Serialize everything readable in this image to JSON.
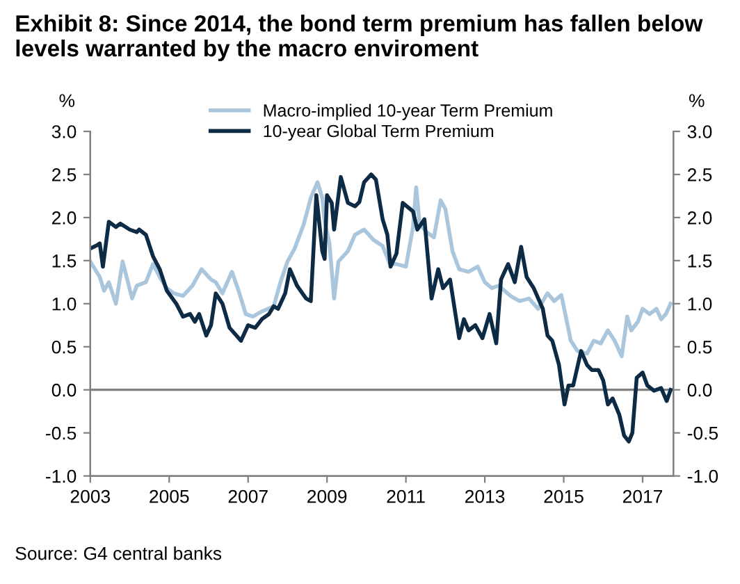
{
  "chart_data": {
    "type": "line",
    "title": "Exhibit 8: Since 2014, the bond term premium has fallen below levels warranted by the macro enviroment",
    "ylabel": "%",
    "y2label": "%",
    "annotations": [
      "Source: G4 central banks"
    ],
    "xlim": [
      2003,
      2017.78
    ],
    "xticks": [
      2003,
      2005,
      2007,
      2009,
      2011,
      2013,
      2015,
      2017
    ],
    "ylim": [
      -1,
      3
    ],
    "yticks": [
      {
        "value": -1,
        "label": "-1.0"
      },
      {
        "value": -0.5,
        "label": "-0.5"
      },
      {
        "value": 0,
        "label": "0.0"
      },
      {
        "value": 0.5,
        "label": "0.5"
      },
      {
        "value": 1,
        "label": "1.0"
      },
      {
        "value": 1.5,
        "label": "1.5"
      },
      {
        "value": 2,
        "label": "2.0"
      },
      {
        "value": 2.5,
        "label": "2.5"
      },
      {
        "value": 3,
        "label": "3.0"
      }
    ],
    "y2lim": [
      -1,
      3
    ],
    "y2ticks": [
      {
        "value": -1,
        "label": "-1.0"
      },
      {
        "value": -0.5,
        "label": "-0.5"
      },
      {
        "value": 0,
        "label": "0.0"
      },
      {
        "value": 0.5,
        "label": "0.5"
      },
      {
        "value": 1,
        "label": "1.0"
      },
      {
        "value": 1.5,
        "label": "1.5"
      },
      {
        "value": 2,
        "label": "2.0"
      },
      {
        "value": 2.5,
        "label": "2.5"
      },
      {
        "value": 3,
        "label": "3.0"
      }
    ],
    "ref_lines": [
      {
        "axis": "y",
        "value": 0,
        "color": "#808080"
      }
    ],
    "legend": "top",
    "grid": false,
    "series": [
      {
        "name": "Macro-implied 10-year Term Premium",
        "color": "#a9c6dd",
        "x": [
          2003,
          2003.24,
          2003.35,
          2003.47,
          2003.65,
          2003.82,
          2004.06,
          2004.18,
          2004.41,
          2004.59,
          2004.76,
          2004.94,
          2005.12,
          2005.35,
          2005.59,
          2005.82,
          2006.06,
          2006.18,
          2006.35,
          2006.59,
          2006.76,
          2006.94,
          2007.12,
          2007.35,
          2007.65,
          2007.82,
          2008,
          2008.18,
          2008.41,
          2008.59,
          2008.76,
          2008.88,
          2008.94,
          2009.06,
          2009.18,
          2009.29,
          2009.53,
          2009.71,
          2009.94,
          2010.18,
          2010.41,
          2010.59,
          2010.76,
          2011,
          2011.18,
          2011.26,
          2011.35,
          2011.53,
          2011.71,
          2011.88,
          2012,
          2012.18,
          2012.35,
          2012.59,
          2012.82,
          2013,
          2013.18,
          2013.35,
          2013.65,
          2013.88,
          2014.12,
          2014.35,
          2014.47,
          2014.59,
          2014.76,
          2014.94,
          2015.18,
          2015.35,
          2015.59,
          2015.76,
          2015.94,
          2016.12,
          2016.29,
          2016.47,
          2016.61,
          2016.71,
          2016.88,
          2017,
          2017.18,
          2017.35,
          2017.47,
          2017.59,
          2017.71
        ],
        "values": [
          1.49,
          1.31,
          1.15,
          1.25,
          1.0,
          1.49,
          1.06,
          1.21,
          1.25,
          1.46,
          1.31,
          1.18,
          1.12,
          1.09,
          1.21,
          1.4,
          1.28,
          1.25,
          1.12,
          1.37,
          1.15,
          0.88,
          0.85,
          0.91,
          0.97,
          1.25,
          1.49,
          1.64,
          1.92,
          2.23,
          2.41,
          2.23,
          1.95,
          1.71,
          1.06,
          1.49,
          1.61,
          1.8,
          1.86,
          1.74,
          1.67,
          1.46,
          1.46,
          1.43,
          1.89,
          2.35,
          1.92,
          1.83,
          1.77,
          2.2,
          2.1,
          1.61,
          1.4,
          1.37,
          1.43,
          1.25,
          1.18,
          1.21,
          1.09,
          1.03,
          1.06,
          0.94,
          1.03,
          1.12,
          1.03,
          1.1,
          0.57,
          0.45,
          0.42,
          0.57,
          0.54,
          0.69,
          0.57,
          0.39,
          0.85,
          0.69,
          0.79,
          0.94,
          0.88,
          0.94,
          0.82,
          0.88,
          1.0
        ]
      },
      {
        "name": "10-year Global Term Premium",
        "color": "#0d2b45",
        "x": [
          2003,
          2003.18,
          2003.24,
          2003.32,
          2003.47,
          2003.65,
          2003.76,
          2004,
          2004.18,
          2004.24,
          2004.41,
          2004.59,
          2004.76,
          2004.94,
          2005.18,
          2005.35,
          2005.53,
          2005.65,
          2005.76,
          2005.94,
          2006.06,
          2006.18,
          2006.35,
          2006.53,
          2006.82,
          2007,
          2007.18,
          2007.35,
          2007.53,
          2007.65,
          2007.76,
          2007.94,
          2008.06,
          2008.24,
          2008.47,
          2008.59,
          2008.73,
          2008.88,
          2008.94,
          2009,
          2009.12,
          2009.18,
          2009.35,
          2009.53,
          2009.71,
          2009.82,
          2009.94,
          2010.12,
          2010.24,
          2010.41,
          2010.53,
          2010.61,
          2010.76,
          2010.92,
          2011.18,
          2011.29,
          2011.47,
          2011.65,
          2011.82,
          2011.94,
          2012.12,
          2012.35,
          2012.47,
          2012.59,
          2012.76,
          2012.94,
          2013.12,
          2013.29,
          2013.41,
          2013.59,
          2013.76,
          2013.92,
          2014.06,
          2014.24,
          2014.47,
          2014.59,
          2014.71,
          2014.88,
          2015.02,
          2015.12,
          2015.24,
          2015.44,
          2015.59,
          2015.71,
          2015.88,
          2016,
          2016.12,
          2016.24,
          2016.41,
          2016.53,
          2016.65,
          2016.74,
          2016.85,
          2017,
          2017.12,
          2017.29,
          2017.47,
          2017.61,
          2017.71
        ],
        "values": [
          1.64,
          1.68,
          1.7,
          1.43,
          1.95,
          1.89,
          1.93,
          1.86,
          1.83,
          1.86,
          1.8,
          1.55,
          1.4,
          1.15,
          1.0,
          0.85,
          0.88,
          0.79,
          0.88,
          0.63,
          0.75,
          1.12,
          1.0,
          0.72,
          0.57,
          0.75,
          0.72,
          0.82,
          0.88,
          0.97,
          0.94,
          1.12,
          1.4,
          1.21,
          1.06,
          1.03,
          2.26,
          1.61,
          1.52,
          2.26,
          2.17,
          1.86,
          2.47,
          2.17,
          2.13,
          2.18,
          2.41,
          2.5,
          2.44,
          1.98,
          1.8,
          1.43,
          1.58,
          2.17,
          2.07,
          1.86,
          1.98,
          1.06,
          1.4,
          1.18,
          1.28,
          0.6,
          0.82,
          0.69,
          0.75,
          0.6,
          0.88,
          0.54,
          1.28,
          1.46,
          1.25,
          1.66,
          1.31,
          1.18,
          0.94,
          0.63,
          0.57,
          0.29,
          -0.17,
          0.05,
          0.05,
          0.45,
          0.29,
          0.23,
          0.23,
          0.11,
          -0.17,
          -0.1,
          -0.29,
          -0.53,
          -0.6,
          -0.5,
          0.14,
          0.2,
          0.05,
          -0.01,
          0.02,
          -0.13,
          0.0
        ]
      }
    ]
  }
}
